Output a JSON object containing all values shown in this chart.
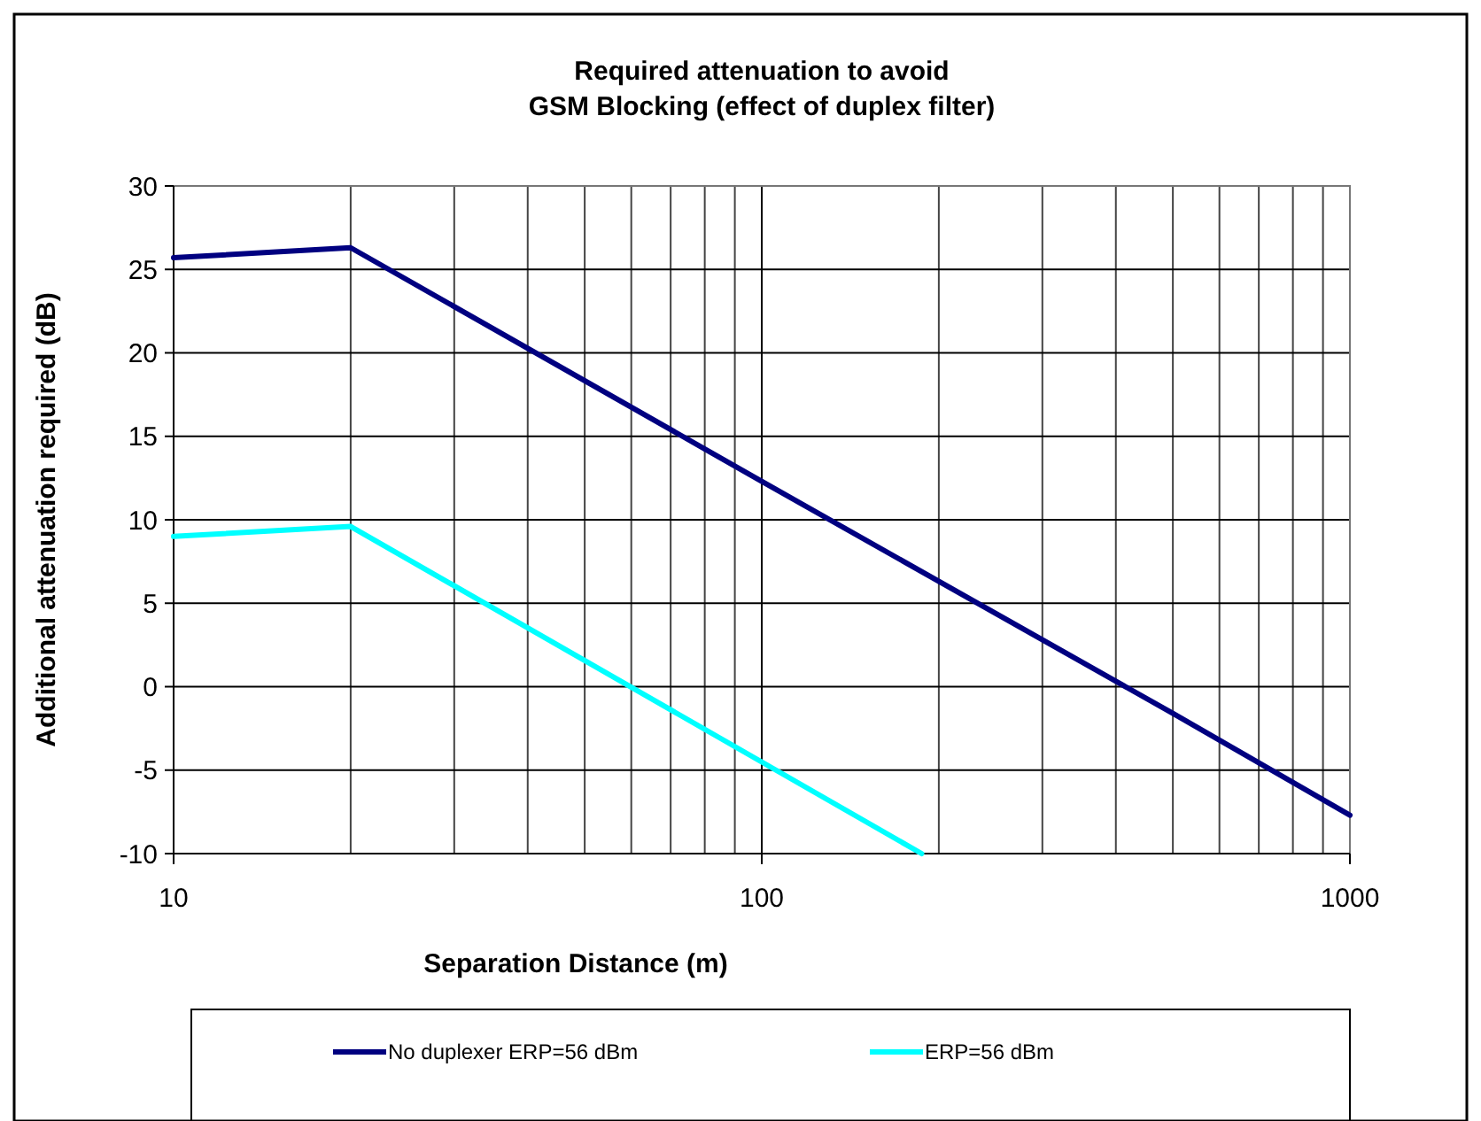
{
  "chart_data": {
    "type": "line",
    "title": "Required attenuation to avoid\nGSM Blocking (effect of duplex filter)",
    "xlabel": "Separation Distance (m)",
    "ylabel": "Additional attenuation required (dB)",
    "series": [
      {
        "name": "No duplexer ERP=56 dBm",
        "color": "#000080",
        "x": [
          10,
          20,
          100,
          500,
          1000
        ],
        "values": [
          25.7,
          26.3,
          12.3,
          -1.6,
          -7.7
        ]
      },
      {
        "name": "ERP=56 dBm",
        "color": "#00ffff",
        "x": [
          10,
          20,
          187
        ],
        "values": [
          9.0,
          9.6,
          -10
        ]
      }
    ],
    "log": "x",
    "xlim": [
      10,
      1000
    ],
    "xticks": [
      10,
      100,
      1000
    ],
    "ylim": [
      -10,
      30
    ],
    "yticks": [
      -10,
      -5,
      0,
      5,
      10,
      15,
      20,
      25,
      30
    ],
    "grid": true,
    "legend": "bottom",
    "marker": "none",
    "line_style": "solid"
  }
}
